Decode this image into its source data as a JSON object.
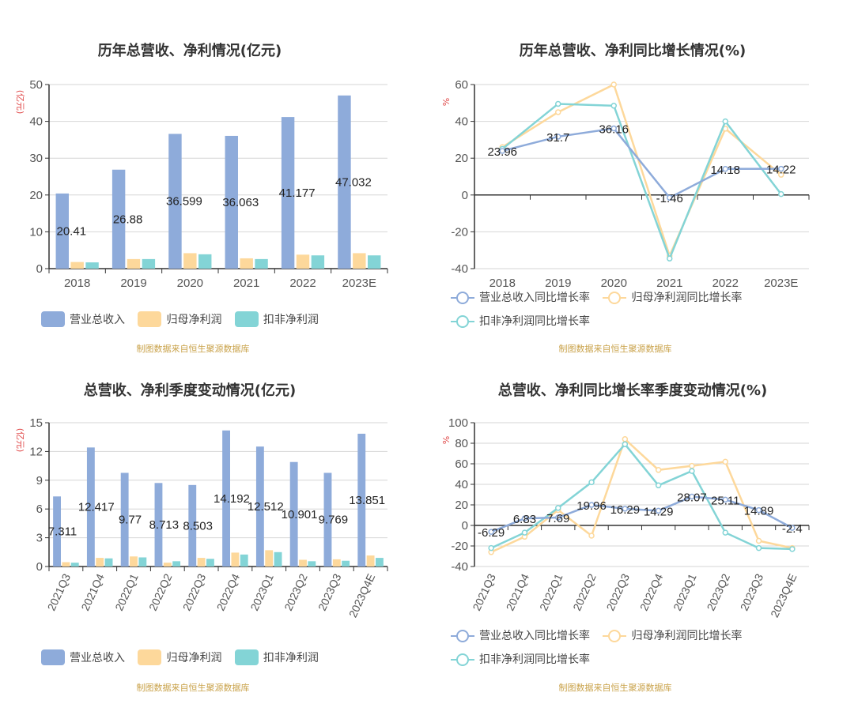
{
  "colors": {
    "revenue": "#8eabda",
    "net_profit": "#fdd89b",
    "deducted_profit": "#83d4d6",
    "source": "#c9a24a",
    "unit": "#e04a4a",
    "axis": "#333333",
    "grid": "#d6d6d6"
  },
  "panels": {
    "annual_values": {
      "title": "历年总营收、净利情况(亿元)",
      "unit": "(亿元)",
      "source": "制图数据来自恒生聚源数据库",
      "legend": [
        "营业总收入",
        "归母净利润",
        "扣非净利润"
      ]
    },
    "annual_growth": {
      "title": "历年总营收、净利同比增长情况(%)",
      "unit": "%",
      "source": "制图数据来自恒生聚源数据库",
      "legend": [
        "营业总收入同比增长率",
        "归母净利润同比增长率",
        "扣非净利润同比增长率"
      ]
    },
    "quarterly_values": {
      "title": "总营收、净利季度变动情况(亿元)",
      "unit": "(亿元)",
      "source": "制图数据来自恒生聚源数据库",
      "legend": [
        "营业总收入",
        "归母净利润",
        "扣非净利润"
      ]
    },
    "quarterly_growth": {
      "title": "总营收、净利同比增长率季度变动情况(%)",
      "unit": "%",
      "source": "制图数据来自恒生聚源数据库",
      "legend": [
        "营业总收入同比增长率",
        "归母净利润同比增长率",
        "扣非净利润同比增长率"
      ]
    }
  },
  "chart_data": [
    {
      "type": "bar",
      "title": "历年总营收、净利情况(亿元)",
      "ylabel": "(亿元)",
      "ylim": [
        0,
        50
      ],
      "yticks": [
        0,
        10,
        20,
        30,
        40,
        50
      ],
      "categories": [
        "2018",
        "2019",
        "2020",
        "2021",
        "2022",
        "2023E"
      ],
      "series": [
        {
          "name": "营业总收入",
          "values": [
            20.41,
            26.88,
            36.599,
            36.063,
            41.177,
            47.032
          ],
          "labels": [
            "20.41",
            "26.88",
            "36.599",
            "36.063",
            "41.177",
            "47.032"
          ]
        },
        {
          "name": "归母净利润",
          "values": [
            1.8,
            2.6,
            4.2,
            2.8,
            3.8,
            4.2
          ]
        },
        {
          "name": "扣非净利润",
          "values": [
            1.7,
            2.6,
            3.9,
            2.6,
            3.6,
            3.6
          ]
        }
      ],
      "legend_position": "bottom",
      "grid": true
    },
    {
      "type": "line",
      "title": "历年总营收、净利同比增长情况(%)",
      "ylabel": "%",
      "ylim": [
        -40,
        60
      ],
      "yticks": [
        -40,
        -20,
        0,
        20,
        40,
        60
      ],
      "categories": [
        "2018",
        "2019",
        "2020",
        "2021",
        "2022",
        "2023E"
      ],
      "series": [
        {
          "name": "营业总收入同比增长率",
          "values": [
            23.96,
            31.7,
            36.16,
            -1.46,
            14.18,
            14.22
          ],
          "labels": [
            "23.96",
            "31.7",
            "36.16",
            "-1.46",
            "14.18",
            "14.22"
          ]
        },
        {
          "name": "归母净利润同比增长率",
          "values": [
            26,
            45,
            60,
            -33,
            36,
            11
          ]
        },
        {
          "name": "扣非净利润同比增长率",
          "values": [
            25,
            49.5,
            48.5,
            -34.5,
            40,
            0.5
          ]
        }
      ],
      "legend_position": "bottom",
      "grid": true
    },
    {
      "type": "bar",
      "title": "总营收、净利季度变动情况(亿元)",
      "ylabel": "(亿元)",
      "ylim": [
        0,
        15
      ],
      "yticks": [
        0,
        3,
        6,
        9,
        12,
        15
      ],
      "categories": [
        "2021Q3",
        "2021Q4",
        "2022Q1",
        "2022Q2",
        "2022Q3",
        "2022Q4",
        "2023Q1",
        "2023Q2",
        "2023Q3",
        "2023Q4E"
      ],
      "series": [
        {
          "name": "营业总收入",
          "values": [
            7.311,
            12.417,
            9.77,
            8.713,
            8.503,
            14.192,
            12.512,
            10.901,
            9.769,
            13.851
          ],
          "labels": [
            "7.311",
            "12.417",
            "9.77",
            "8.713",
            "8.503",
            "14.192",
            "12.512",
            "10.901",
            "9.769",
            "13.851"
          ]
        },
        {
          "name": "归母净利润",
          "values": [
            0.45,
            0.9,
            1.05,
            0.4,
            0.9,
            1.45,
            1.7,
            0.7,
            0.75,
            1.15
          ]
        },
        {
          "name": "扣非净利润",
          "values": [
            0.4,
            0.85,
            0.95,
            0.55,
            0.8,
            1.25,
            1.5,
            0.55,
            0.6,
            0.9
          ]
        }
      ],
      "legend_position": "bottom",
      "grid": true
    },
    {
      "type": "line",
      "title": "总营收、净利同比增长率季度变动情况(%)",
      "ylabel": "%",
      "ylim": [
        -40,
        100
      ],
      "yticks": [
        -40,
        -20,
        0,
        20,
        40,
        60,
        80,
        100
      ],
      "categories": [
        "2021Q3",
        "2021Q4",
        "2022Q1",
        "2022Q2",
        "2022Q3",
        "2022Q4",
        "2023Q1",
        "2023Q2",
        "2023Q3",
        "2023Q4E"
      ],
      "series": [
        {
          "name": "营业总收入同比增长率",
          "values": [
            -6.29,
            6.83,
            7.69,
            19.96,
            16.29,
            14.29,
            28.07,
            25.11,
            14.89,
            -2.4
          ],
          "labels": [
            "-6.29",
            "6.83",
            "7.69",
            "19.96",
            "16.29",
            "14.29",
            "28.07",
            "25.11",
            "14.89",
            "-2.4"
          ]
        },
        {
          "name": "归母净利润同比增长率",
          "values": [
            -26,
            -11,
            15,
            -10,
            84,
            54,
            58,
            62,
            -15,
            -22
          ]
        },
        {
          "name": "扣非净利润同比增长率",
          "values": [
            -22,
            -7,
            17,
            42,
            79,
            39,
            53,
            -7,
            -22,
            -23
          ]
        }
      ],
      "legend_position": "bottom",
      "grid": true
    }
  ]
}
